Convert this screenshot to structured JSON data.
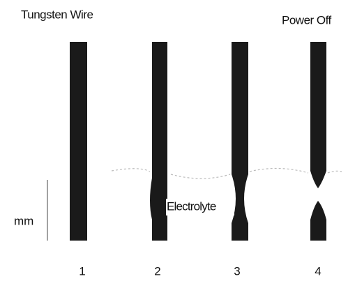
{
  "header": {
    "left": "Tungsten Wire",
    "right": "Power Off"
  },
  "scale": "mm",
  "electrolyte": "Electrolyte",
  "wires": [
    {
      "label": "1"
    },
    {
      "label": "2"
    },
    {
      "label": "3"
    },
    {
      "label": "4"
    }
  ]
}
